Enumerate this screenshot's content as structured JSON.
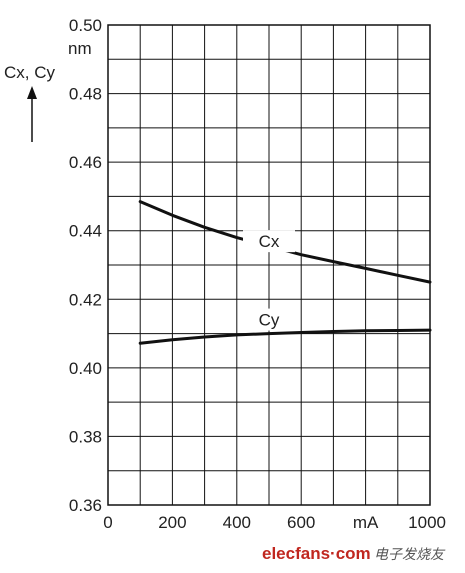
{
  "chart_data": {
    "type": "line",
    "title": "",
    "ylabel": "Cx, Cy",
    "yunit": "nm",
    "xunit": "mA",
    "xlim": [
      0,
      1000
    ],
    "ylim": [
      0.36,
      0.5
    ],
    "grid": true,
    "x_ticks": [
      "0",
      "200",
      "400",
      "600",
      "1000"
    ],
    "y_ticks": [
      "0.36",
      "0.38",
      "0.40",
      "0.42",
      "0.44",
      "0.46",
      "0.48",
      "0.50"
    ],
    "x_tick_values": [
      0,
      200,
      400,
      600,
      1000
    ],
    "y_tick_values": [
      0.36,
      0.38,
      0.4,
      0.42,
      0.44,
      0.46,
      0.48,
      0.5
    ],
    "series": [
      {
        "name": "Cx",
        "x": [
          100,
          200,
          300,
          400,
          500,
          600,
          700,
          800,
          900,
          1000
        ],
        "y": [
          0.4485,
          0.4445,
          0.441,
          0.438,
          0.4355,
          0.433,
          0.431,
          0.429,
          0.427,
          0.425
        ],
        "color": "#111111"
      },
      {
        "name": "Cy",
        "x": [
          100,
          200,
          300,
          400,
          500,
          600,
          700,
          800,
          900,
          1000
        ],
        "y": [
          0.4072,
          0.4082,
          0.409,
          0.4096,
          0.41,
          0.4103,
          0.4106,
          0.4108,
          0.4109,
          0.411
        ],
        "color": "#111111"
      }
    ]
  },
  "watermark": {
    "brand": "elecfans·com",
    "cn": "电子发烧友"
  }
}
